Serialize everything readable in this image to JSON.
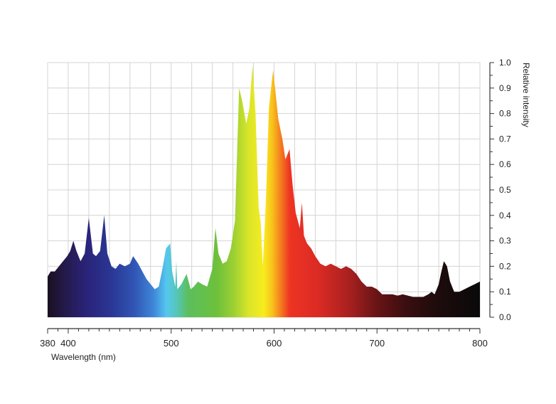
{
  "chart_data": {
    "type": "area",
    "xlabel": "Wavelength (nm)",
    "ylabel": "Relative intensity",
    "xlim": [
      380,
      800
    ],
    "ylim": [
      0,
      1.0
    ],
    "x_ticks": [
      380,
      400,
      500,
      600,
      700,
      800
    ],
    "x_tick_labels": [
      "380",
      "400",
      "500",
      "600",
      "700",
      "800"
    ],
    "y_ticks": [
      0.0,
      0.1,
      0.2,
      0.3,
      0.4,
      0.5,
      0.6,
      0.7,
      0.8,
      0.9,
      1.0
    ],
    "y_tick_labels": [
      "0.0",
      "0.1",
      "0.2",
      "0.3",
      "0.4",
      "0.5",
      "0.6",
      "0.7",
      "0.8",
      "0.9",
      "1.0"
    ],
    "grid": true,
    "fill": "visible-spectrum gradient",
    "series": [
      {
        "x": [
          380,
          383,
          387,
          391,
          395,
          399,
          402,
          405,
          408,
          412,
          416,
          420,
          424,
          427,
          431,
          435,
          438,
          442,
          446,
          450,
          455,
          460,
          463,
          468,
          472,
          476,
          480,
          484,
          488,
          492,
          495,
          499,
          501,
          504,
          505,
          506,
          510,
          515,
          519,
          522,
          526,
          530,
          535,
          540,
          543,
          546,
          550,
          554,
          558,
          562,
          566,
          569,
          573,
          576,
          579,
          582,
          585,
          587,
          589,
          592,
          595,
          599,
          601,
          604,
          608,
          611,
          615,
          618,
          621,
          623,
          625,
          627,
          629,
          632,
          636,
          640,
          645,
          650,
          655,
          660,
          665,
          670,
          675,
          680,
          685,
          690,
          695,
          700,
          705,
          710,
          715,
          720,
          725,
          730,
          735,
          740,
          745,
          750,
          753,
          756,
          760,
          762,
          765,
          768,
          771,
          775,
          780,
          785,
          790,
          795,
          800
        ],
        "y": [
          0.16,
          0.18,
          0.18,
          0.2,
          0.22,
          0.24,
          0.26,
          0.3,
          0.26,
          0.22,
          0.25,
          0.39,
          0.25,
          0.24,
          0.26,
          0.4,
          0.25,
          0.2,
          0.19,
          0.21,
          0.2,
          0.21,
          0.24,
          0.21,
          0.18,
          0.15,
          0.13,
          0.11,
          0.12,
          0.2,
          0.27,
          0.29,
          0.18,
          0.12,
          0.22,
          0.11,
          0.13,
          0.17,
          0.11,
          0.12,
          0.14,
          0.13,
          0.12,
          0.19,
          0.35,
          0.25,
          0.21,
          0.22,
          0.27,
          0.38,
          0.9,
          0.85,
          0.76,
          0.82,
          0.99,
          0.8,
          0.43,
          0.37,
          0.2,
          0.45,
          0.82,
          0.97,
          0.9,
          0.78,
          0.7,
          0.62,
          0.66,
          0.52,
          0.41,
          0.38,
          0.35,
          0.45,
          0.32,
          0.29,
          0.27,
          0.24,
          0.21,
          0.2,
          0.21,
          0.2,
          0.19,
          0.2,
          0.19,
          0.17,
          0.14,
          0.12,
          0.12,
          0.11,
          0.09,
          0.09,
          0.09,
          0.085,
          0.09,
          0.085,
          0.08,
          0.08,
          0.08,
          0.09,
          0.1,
          0.09,
          0.13,
          0.17,
          0.22,
          0.2,
          0.14,
          0.1,
          0.1,
          0.11,
          0.12,
          0.13,
          0.14
        ]
      }
    ]
  }
}
